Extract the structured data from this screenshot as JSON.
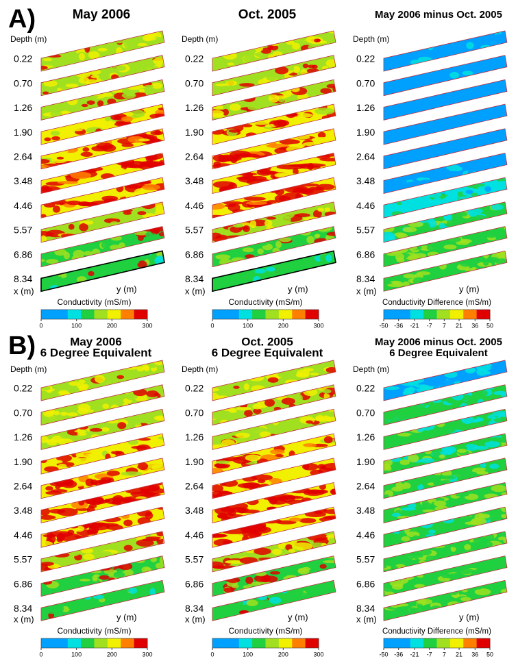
{
  "rows": [
    {
      "label": "A)",
      "panels": [
        {
          "title": [
            "May 2006"
          ],
          "legend": "Conductivity (mS/m)",
          "range": [
            0,
            300
          ],
          "ticks": [
            0,
            100,
            200,
            300
          ]
        },
        {
          "title": [
            "Oct. 2005"
          ],
          "legend": "Conductivity (mS/m)",
          "range": [
            0,
            300
          ],
          "ticks": [
            0,
            100,
            200,
            300
          ]
        },
        {
          "title": [
            "May 2006 minus Oct. 2005"
          ],
          "legend": "Conductivity Difference (mS/m)",
          "range": [
            -50,
            50
          ],
          "ticks": [
            -50,
            -36,
            -21,
            -7,
            7,
            21,
            36,
            50
          ]
        }
      ]
    },
    {
      "label": "B)",
      "panels": [
        {
          "title": [
            "May 2006",
            "6 Degree Equivalent"
          ],
          "legend": "Conductivity (mS/m)",
          "range": [
            0,
            300
          ],
          "ticks": [
            0,
            100,
            200,
            300
          ]
        },
        {
          "title": [
            "Oct. 2005",
            "6 Degree Equivalent"
          ],
          "legend": "Conductivity (mS/m)",
          "range": [
            0,
            300
          ],
          "ticks": [
            0,
            100,
            200,
            300
          ]
        },
        {
          "title": [
            "May 2006 minus Oct. 2005",
            "6 Degree Equivalent"
          ],
          "legend": "Conductivity Difference (mS/m)",
          "range": [
            -50,
            50
          ],
          "ticks": [
            -50,
            -36,
            -21,
            -7,
            7,
            21,
            36,
            50
          ]
        }
      ]
    }
  ],
  "depth_axis_label": "Depth (m)",
  "depths": [
    "0.22",
    "0.70",
    "1.26",
    "1.90",
    "2.64",
    "3.48",
    "4.46",
    "5.57",
    "6.86",
    "8.34"
  ],
  "x_axis_label": "x (m)",
  "y_axis_label": "y (m)"
}
